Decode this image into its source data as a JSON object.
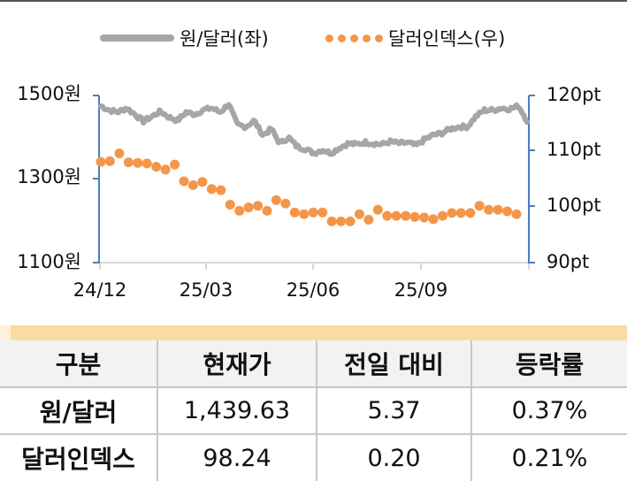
{
  "legend": {
    "series1_label": "원/달러(좌)",
    "series2_label": "달러인덱스(우)"
  },
  "axes": {
    "left_ticks": [
      "1500원",
      "1300원",
      "1100원"
    ],
    "right_ticks": [
      "120pt",
      "110pt",
      "100pt",
      "90pt"
    ],
    "x_ticks": [
      "24/12",
      "25/03",
      "25/06",
      "25/09"
    ]
  },
  "colors": {
    "krw_usd_line": "#a6a6a6",
    "dollar_index_dots": "#f4964a",
    "axis": "#4a7ebf",
    "table_band": "#f8dca3",
    "table_header_bg": "#f2f2f2"
  },
  "chart_data": {
    "type": "line",
    "title": "",
    "xlabel": "",
    "ylabel": "원/달러 (좌), 달러인덱스 (우)",
    "x_range": [
      "2024-12",
      "2025-12"
    ],
    "x_ticks": [
      "24/12",
      "25/03",
      "25/06",
      "25/09"
    ],
    "y_left_range": [
      1100,
      1500
    ],
    "y_left_ticks": [
      1100,
      1300,
      1500
    ],
    "y_left_unit": "원",
    "y_right_range": [
      90,
      120
    ],
    "y_right_ticks": [
      90,
      100,
      110,
      120
    ],
    "y_right_unit": "pt",
    "legend_position": "top",
    "grid": false,
    "series": [
      {
        "name": "원/달러(좌)",
        "axis": "left",
        "style": "line",
        "color": "#a6a6a6",
        "x": [
          "24/12",
          "24/12",
          "24/12",
          "25/01",
          "25/01",
          "25/01",
          "25/01",
          "25/01",
          "25/02",
          "25/02",
          "25/02",
          "25/02",
          "25/02",
          "25/03",
          "25/03",
          "25/03",
          "25/03",
          "25/04",
          "25/04",
          "25/04",
          "25/04",
          "25/04",
          "25/05",
          "25/05",
          "25/05",
          "25/05",
          "25/06",
          "25/06",
          "25/06",
          "25/06",
          "25/07",
          "25/07",
          "25/07",
          "25/07",
          "25/08",
          "25/08",
          "25/08",
          "25/08",
          "25/09",
          "25/09",
          "25/09",
          "25/09",
          "25/10",
          "25/10",
          "25/10",
          "25/10",
          "25/11",
          "25/11",
          "25/11",
          "25/11",
          "25/12"
        ],
        "values": [
          1475,
          1465,
          1460,
          1470,
          1455,
          1438,
          1450,
          1462,
          1448,
          1440,
          1460,
          1455,
          1465,
          1470,
          1460,
          1480,
          1430,
          1425,
          1440,
          1405,
          1420,
          1385,
          1400,
          1378,
          1372,
          1362,
          1370,
          1362,
          1375,
          1385,
          1383,
          1388,
          1385,
          1383,
          1390,
          1385,
          1387,
          1380,
          1395,
          1405,
          1410,
          1420,
          1425,
          1425,
          1450,
          1465,
          1465,
          1470,
          1468,
          1475,
          1440
        ]
      },
      {
        "name": "달러인덱스(우)",
        "axis": "right",
        "style": "dots",
        "color": "#f4964a",
        "values": [
          108.1,
          108.2,
          109.6,
          108.0,
          107.9,
          107.8,
          107.2,
          106.7,
          107.6,
          104.6,
          103.9,
          104.5,
          103.2,
          103.0,
          100.4,
          99.3,
          99.9,
          100.2,
          99.3,
          101.2,
          100.6,
          99.0,
          98.7,
          99.0,
          99.0,
          97.4,
          97.4,
          97.4,
          98.7,
          97.7,
          99.5,
          98.4,
          98.4,
          98.4,
          98.2,
          98.1,
          97.8,
          98.4,
          98.9,
          98.9,
          98.9,
          100.2,
          99.5,
          99.5,
          99.2,
          98.7
        ]
      }
    ]
  },
  "table": {
    "headers": [
      "구분",
      "현재가",
      "전일 대비",
      "등락률"
    ],
    "rows": [
      {
        "name": "원/달러",
        "price": "1,439.63",
        "change": "5.37",
        "rate": "0.37%"
      },
      {
        "name": "달러인덱스",
        "price": "98.24",
        "change": "0.20",
        "rate": "0.21%"
      }
    ]
  }
}
